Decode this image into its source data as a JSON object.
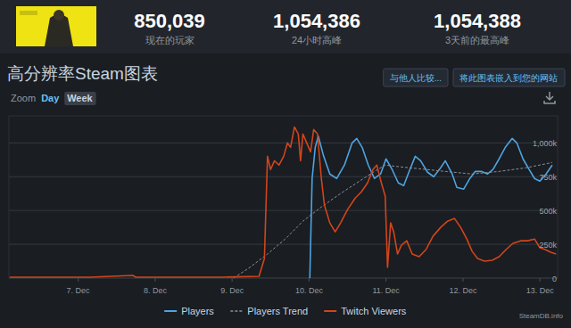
{
  "header": {
    "stats": [
      {
        "value": "850,039",
        "label": "现在的玩家"
      },
      {
        "value": "1,054,386",
        "label": "24小时高峰"
      },
      {
        "value": "1,054,388",
        "label": "3天前的最高峰"
      }
    ]
  },
  "page": {
    "title": "高分辨率Steam图表",
    "buttons": [
      "与他人比较...",
      "将此图表嵌入到您的网站"
    ],
    "zoom": {
      "label": "Zoom",
      "options": [
        "Day",
        "Week"
      ]
    },
    "credit": "SteamDB.info"
  },
  "chart_data": {
    "type": "line",
    "xlim": [
      6.1,
      13.23
    ],
    "xticks": [
      {
        "value": 7,
        "label": "7. Dec"
      },
      {
        "value": 8,
        "label": "8. Dec"
      },
      {
        "value": 9,
        "label": "9. Dec"
      },
      {
        "value": 10,
        "label": "10. Dec"
      },
      {
        "value": 11,
        "label": "11. Dec"
      },
      {
        "value": 12,
        "label": "12. Dec"
      },
      {
        "value": 13,
        "label": "13. Dec"
      }
    ],
    "ylim": [
      0,
      1200000
    ],
    "yticks": [
      {
        "value": 0,
        "label": "0"
      },
      {
        "value": 250000,
        "label": "250k"
      },
      {
        "value": 500000,
        "label": "500k"
      },
      {
        "value": 750000,
        "label": "750k"
      },
      {
        "value": 1000000,
        "label": "1,000k"
      }
    ],
    "grid": true,
    "legend": "bottom",
    "series": [
      {
        "name": "Players",
        "color": "#4da4e0",
        "line_style": "solid",
        "x": [
          10.01,
          10.04,
          10.08,
          10.12,
          10.19,
          10.27,
          10.36,
          10.46,
          10.56,
          10.62,
          10.69,
          10.77,
          10.85,
          10.93,
          11.0,
          11.08,
          11.16,
          11.23,
          11.31,
          11.38,
          11.45,
          11.54,
          11.62,
          11.71,
          11.77,
          11.86,
          11.92,
          12.01,
          12.09,
          12.16,
          12.24,
          12.32,
          12.39,
          12.47,
          12.55,
          12.64,
          12.7,
          12.78,
          12.86,
          12.93,
          13.0,
          13.08,
          13.16
        ],
        "values": [
          0,
          737000,
          967000,
          1050000,
          901000,
          770000,
          737000,
          836000,
          1000000,
          1033000,
          967000,
          836000,
          737000,
          770000,
          882000,
          803000,
          704000,
          684000,
          803000,
          901000,
          868000,
          783000,
          750000,
          816000,
          868000,
          770000,
          671000,
          658000,
          737000,
          789000,
          789000,
          770000,
          803000,
          882000,
          967000,
          1033000,
          1000000,
          882000,
          803000,
          737000,
          717000,
          770000,
          836000
        ]
      },
      {
        "name": "Players Trend",
        "color": "#8a9099",
        "line_style": "dashed",
        "x": [
          9.02,
          9.23,
          9.46,
          9.69,
          9.92,
          10.16,
          10.39,
          10.62,
          10.85,
          10.99,
          11.2,
          11.43,
          11.77,
          12.12,
          12.47,
          12.82,
          13.16
        ],
        "values": [
          0,
          79000,
          178000,
          289000,
          421000,
          526000,
          618000,
          704000,
          789000,
          836000,
          822000,
          809000,
          789000,
          770000,
          789000,
          816000,
          855000
        ]
      },
      {
        "name": "Twitch Viewers",
        "color": "#d1451b",
        "line_style": "solid",
        "x": [
          6.11,
          7.15,
          7.71,
          7.75,
          8.88,
          9.35,
          9.42,
          9.46,
          9.5,
          9.55,
          9.61,
          9.67,
          9.72,
          9.76,
          9.81,
          9.86,
          9.89,
          9.92,
          9.97,
          10.02,
          10.06,
          10.11,
          10.16,
          10.2,
          10.27,
          10.34,
          10.41,
          10.5,
          10.6,
          10.68,
          10.76,
          10.83,
          10.88,
          10.94,
          10.99,
          11.02,
          11.06,
          11.1,
          11.15,
          11.2,
          11.27,
          11.34,
          11.43,
          11.52,
          11.61,
          11.71,
          11.8,
          11.89,
          11.97,
          12.05,
          12.12,
          12.19,
          12.28,
          12.38,
          12.47,
          12.56,
          12.65,
          12.75,
          12.84,
          12.93,
          13.0,
          13.07,
          13.14,
          13.21
        ],
        "values": [
          7000,
          7000,
          20000,
          7000,
          7000,
          13000,
          145000,
          901000,
          803000,
          868000,
          836000,
          901000,
          1000000,
          967000,
          1118000,
          1066000,
          868000,
          1066000,
          1000000,
          934000,
          1099000,
          1066000,
          737000,
          539000,
          408000,
          342000,
          408000,
          507000,
          592000,
          638000,
          704000,
          803000,
          836000,
          704000,
          605000,
          79000,
          408000,
          342000,
          178000,
          243000,
          276000,
          178000,
          158000,
          211000,
          309000,
          375000,
          421000,
          441000,
          375000,
          289000,
          197000,
          145000,
          125000,
          132000,
          158000,
          211000,
          257000,
          276000,
          276000,
          289000,
          224000,
          211000,
          191000,
          178000
        ]
      }
    ]
  }
}
